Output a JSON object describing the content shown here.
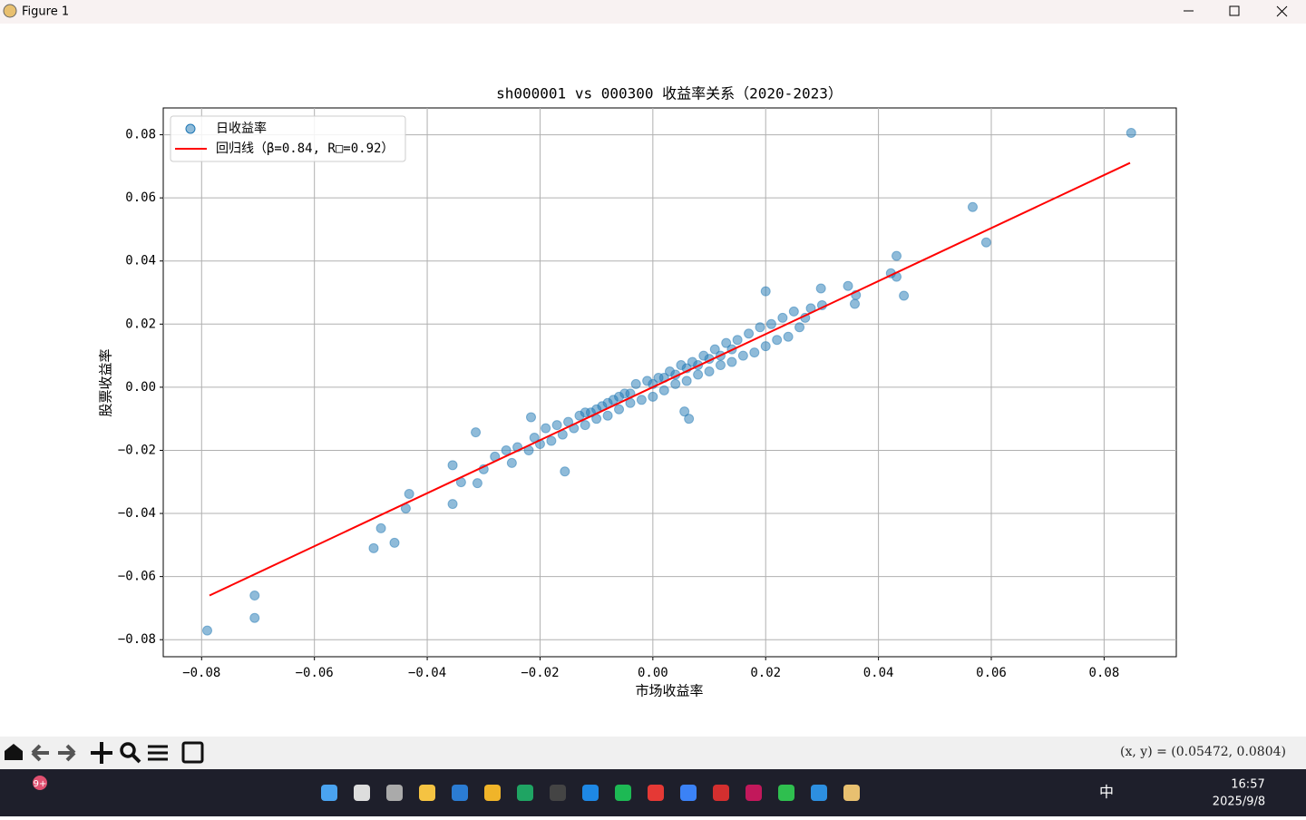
{
  "window": {
    "title": "Figure 1"
  },
  "status": {
    "coords": "(x, y) = (0.05472, 0.0804)"
  },
  "taskbar": {
    "badge": "9+",
    "ime": "中",
    "time": "16:57",
    "date": "2025/9/8"
  },
  "chart_data": {
    "type": "scatter",
    "title": "sh000001 vs 000300 收益率关系（2020-2023）",
    "xlabel": "市场收益率",
    "ylabel": "股票收益率",
    "xlim": [
      -0.0868,
      0.0928
    ],
    "ylim": [
      -0.0854,
      0.0885
    ],
    "xticks": [
      {
        "value": -0.08,
        "label": "−0.08"
      },
      {
        "value": -0.06,
        "label": "−0.06"
      },
      {
        "value": -0.04,
        "label": "−0.04"
      },
      {
        "value": -0.02,
        "label": "−0.02"
      },
      {
        "value": 0,
        "label": "0.00"
      },
      0.02,
      0.04,
      0.06,
      0.08
    ],
    "yticks": [
      {
        "value": -0.08,
        "label": "−0.08"
      },
      {
        "value": -0.06,
        "label": "−0.06"
      },
      {
        "value": -0.04,
        "label": "−0.04"
      },
      {
        "value": -0.02,
        "label": "−0.02"
      },
      {
        "value": 0,
        "label": "0.00"
      },
      0.02,
      0.04,
      0.06,
      0.08
    ],
    "grid": true,
    "legend": "upper left",
    "series": [
      {
        "name": "日收益率",
        "type": "scatter",
        "color": "#1f77b4",
        "x": [
          -0.03,
          -0.028,
          -0.026,
          -0.025,
          -0.024,
          -0.022,
          -0.021,
          -0.02,
          -0.019,
          -0.018,
          -0.017,
          -0.016,
          -0.015,
          -0.014,
          -0.013,
          -0.012,
          -0.011,
          -0.01,
          -0.009,
          -0.008,
          -0.007,
          -0.006,
          -0.005,
          -0.004,
          -0.003,
          -0.002,
          -0.001,
          0,
          0.001,
          0.002,
          0.003,
          0.004,
          0.005,
          0.006,
          0.007,
          0.008,
          0.009,
          0.01,
          0.011,
          0.012,
          0.013,
          0.014,
          0.015,
          0.016,
          0.017,
          0.018,
          0.019,
          0.02,
          0.021,
          0.022,
          0.023,
          0.024,
          0.025,
          0.026,
          0.027,
          0.028,
          0.03,
          -0.012,
          -0.008,
          -0.004,
          0.002,
          0.006,
          0.01,
          0.014,
          -0.006,
          0.004,
          0.008,
          -0.01,
          0.012,
          0,
          0.0848,
          0.0567,
          0.0591,
          0.0432,
          0.0422,
          0.0432,
          0.0445,
          0.0358,
          0.036,
          0.0346,
          0.0298,
          0.02,
          -0.079,
          -0.0706,
          -0.0706,
          -0.0495,
          -0.0482,
          -0.0458,
          -0.0438,
          -0.0432,
          -0.0355,
          -0.0314,
          -0.0355,
          -0.034,
          -0.0311,
          -0.0156,
          0.0064,
          0.0056,
          -0.0216
        ],
        "values": [
          -0.026,
          -0.022,
          -0.02,
          -0.024,
          -0.019,
          -0.02,
          -0.016,
          -0.018,
          -0.013,
          -0.017,
          -0.012,
          -0.015,
          -0.011,
          -0.013,
          -0.009,
          -0.012,
          -0.008,
          -0.01,
          -0.006,
          -0.009,
          -0.004,
          -0.007,
          -0.002,
          -0.005,
          0.001,
          -0.004,
          0.002,
          -0.003,
          0.003,
          -0.001,
          0.005,
          0.001,
          0.007,
          0.002,
          0.008,
          0.004,
          0.01,
          0.005,
          0.012,
          0.007,
          0.014,
          0.008,
          0.015,
          0.01,
          0.017,
          0.011,
          0.019,
          0.013,
          0.02,
          0.015,
          0.022,
          0.016,
          0.024,
          0.019,
          0.022,
          0.025,
          0.026,
          -0.008,
          -0.005,
          -0.002,
          0.003,
          0.006,
          0.009,
          0.012,
          -0.003,
          0.004,
          0.007,
          -0.007,
          0.01,
          0.001,
          0.0806,
          0.0571,
          0.0459,
          0.0416,
          0.0361,
          0.035,
          0.029,
          0.0264,
          0.0292,
          0.0321,
          0.0313,
          0.0304,
          -0.0771,
          -0.0731,
          -0.066,
          -0.051,
          -0.0447,
          -0.0493,
          -0.0384,
          -0.0338,
          -0.037,
          -0.0143,
          -0.0247,
          -0.0301,
          -0.0304,
          -0.0267,
          -0.01,
          -0.0077,
          -0.0095
        ]
      },
      {
        "name": "回归线（β=0.84, R□=0.92）",
        "type": "line",
        "color": "#ff0000",
        "x": [
          -0.0786,
          0.0846
        ],
        "values": [
          -0.066,
          0.0711
        ]
      }
    ]
  }
}
